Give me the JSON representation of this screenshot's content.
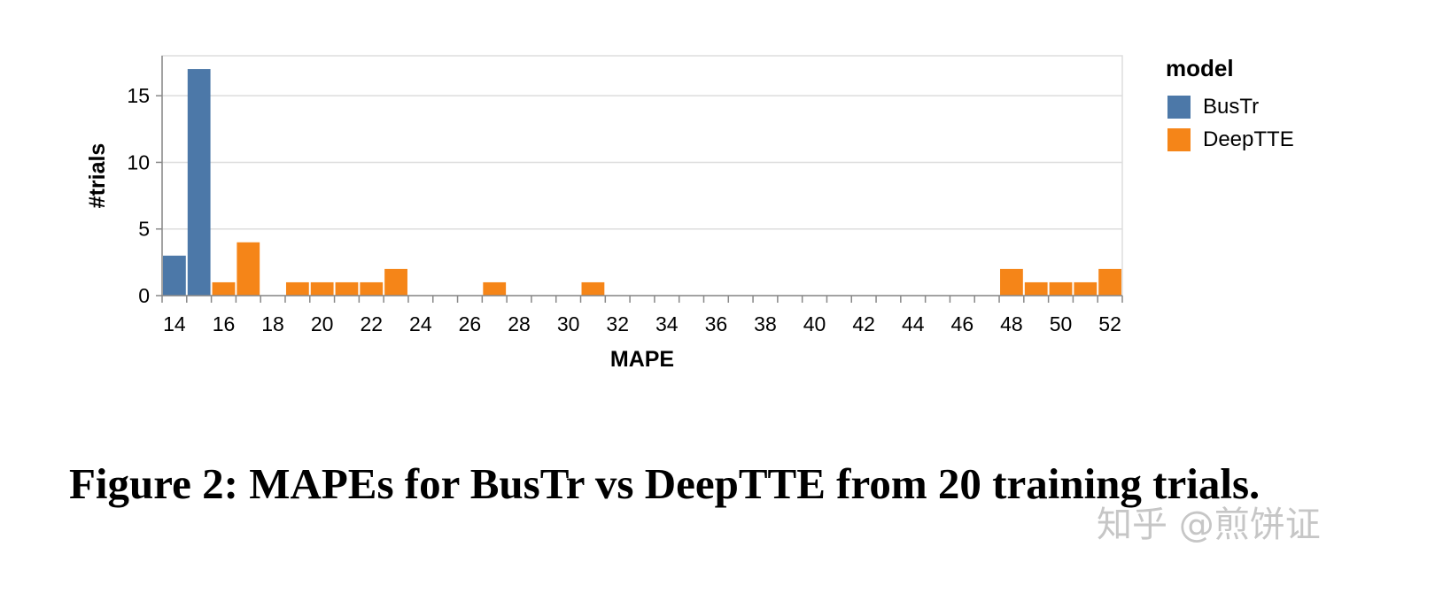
{
  "chart_data": {
    "type": "bar",
    "xlabel": "MAPE",
    "ylabel": "#trials",
    "xlim": [
      14,
      53
    ],
    "ylim": [
      0,
      18
    ],
    "x_ticks": [
      "14",
      "16",
      "18",
      "20",
      "22",
      "24",
      "26",
      "28",
      "30",
      "32",
      "34",
      "36",
      "38",
      "40",
      "42",
      "44",
      "46",
      "48",
      "50",
      "52"
    ],
    "y_ticks": [
      "0",
      "5",
      "10",
      "15"
    ],
    "grid": true,
    "legend": {
      "title": "model",
      "placement": "right"
    },
    "series": [
      {
        "name": "BusTr",
        "color": "#4c78a8",
        "bins": [
          {
            "x0": 14,
            "x1": 15,
            "count": 3
          },
          {
            "x0": 15,
            "x1": 16,
            "count": 17
          }
        ]
      },
      {
        "name": "DeepTTE",
        "color": "#f58518",
        "bins": [
          {
            "x0": 16,
            "x1": 17,
            "count": 1
          },
          {
            "x0": 17,
            "x1": 18,
            "count": 4
          },
          {
            "x0": 19,
            "x1": 20,
            "count": 1
          },
          {
            "x0": 20,
            "x1": 21,
            "count": 1
          },
          {
            "x0": 21,
            "x1": 22,
            "count": 1
          },
          {
            "x0": 22,
            "x1": 23,
            "count": 1
          },
          {
            "x0": 23,
            "x1": 24,
            "count": 2
          },
          {
            "x0": 27,
            "x1": 28,
            "count": 1
          },
          {
            "x0": 31,
            "x1": 32,
            "count": 1
          },
          {
            "x0": 48,
            "x1": 49,
            "count": 2
          },
          {
            "x0": 49,
            "x1": 50,
            "count": 1
          },
          {
            "x0": 50,
            "x1": 51,
            "count": 1
          },
          {
            "x0": 51,
            "x1": 52,
            "count": 1
          },
          {
            "x0": 52,
            "x1": 53,
            "count": 2
          }
        ]
      }
    ]
  },
  "caption": "Figure 2: MAPEs for BusTr vs DeepTTE from 20 training trials.",
  "watermark": "知乎 @煎饼证"
}
